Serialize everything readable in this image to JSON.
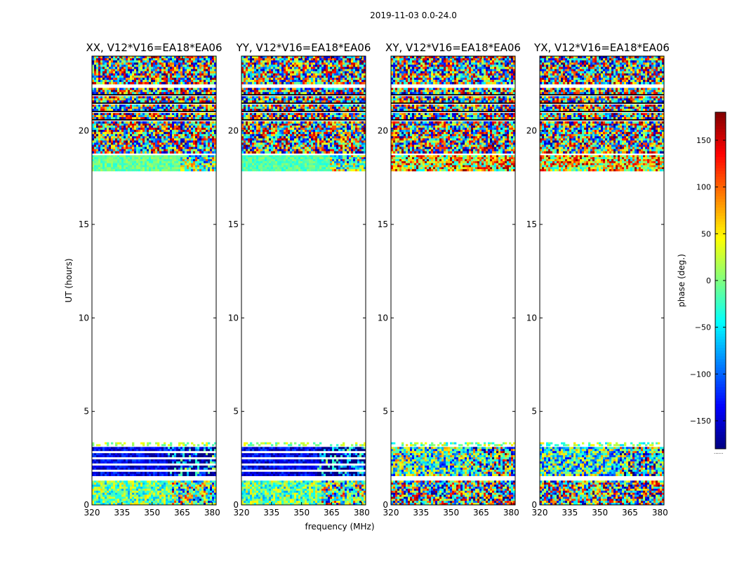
{
  "figure": {
    "suptitle": "2019-11-03 0.0-24.0",
    "xlabel": "frequency (MHz)",
    "ylabel": "UT (hours)"
  },
  "colorbar": {
    "label": "phase (deg.)",
    "ticks": [
      150,
      100,
      50,
      0,
      -50,
      -100,
      -150
    ],
    "tick_labels": [
      "150",
      "100",
      "50",
      "0",
      "−50",
      "−100",
      "−150"
    ],
    "range": [
      -180,
      180
    ],
    "colormap": "jet",
    "footer": "......"
  },
  "chart_data": [
    {
      "type": "heatmap",
      "title": "XX, V12*V16=EA18*EA06",
      "polarization": "XX",
      "xlabel": "frequency (MHz)",
      "ylabel": "UT (hours)",
      "xlim": [
        320,
        382
      ],
      "ylim": [
        0,
        24
      ],
      "xticks": [
        320,
        335,
        350,
        365,
        380
      ],
      "yticks": [
        0,
        5,
        10,
        15,
        20
      ],
      "value_label": "phase (deg.)",
      "value_range": [
        -180,
        180
      ],
      "bands": [
        {
          "t0": 0.0,
          "t1": 1.3,
          "pattern": "mixed",
          "mean": -10,
          "spread": 70
        },
        {
          "t0": 1.55,
          "t1": 3.1,
          "pattern": "stripes",
          "mean": -140,
          "spread": 35
        },
        {
          "t0": 3.15,
          "t1": 3.35,
          "pattern": "faint",
          "mean": 10,
          "spread": 40
        },
        {
          "t0": 17.85,
          "t1": 18.7,
          "pattern": "smooth",
          "mean": -10,
          "spread": 25
        },
        {
          "t0": 18.8,
          "t1": 20.4,
          "pattern": "noise",
          "mean": 0,
          "spread": 180
        },
        {
          "t0": 20.4,
          "t1": 22.3,
          "pattern": "striped-noise",
          "mean": 0,
          "spread": 180
        },
        {
          "t0": 22.5,
          "t1": 24.0,
          "pattern": "noise",
          "mean": 0,
          "spread": 180
        }
      ]
    },
    {
      "type": "heatmap",
      "title": "YY, V12*V16=EA18*EA06",
      "polarization": "YY",
      "xlabel": "frequency (MHz)",
      "ylabel": "UT (hours)",
      "xlim": [
        320,
        382
      ],
      "ylim": [
        0,
        24
      ],
      "xticks": [
        320,
        335,
        350,
        365,
        380
      ],
      "yticks": [
        0,
        5,
        10,
        15,
        20
      ],
      "value_label": "phase (deg.)",
      "value_range": [
        -180,
        180
      ],
      "bands": [
        {
          "t0": 0.0,
          "t1": 1.3,
          "pattern": "mixed",
          "mean": -10,
          "spread": 70
        },
        {
          "t0": 1.55,
          "t1": 3.1,
          "pattern": "stripes",
          "mean": -140,
          "spread": 35
        },
        {
          "t0": 3.15,
          "t1": 3.35,
          "pattern": "faint",
          "mean": 10,
          "spread": 40
        },
        {
          "t0": 17.85,
          "t1": 18.7,
          "pattern": "smooth",
          "mean": -15,
          "spread": 25
        },
        {
          "t0": 18.8,
          "t1": 20.4,
          "pattern": "noise",
          "mean": 0,
          "spread": 180
        },
        {
          "t0": 20.4,
          "t1": 22.3,
          "pattern": "striped-noise",
          "mean": 0,
          "spread": 180
        },
        {
          "t0": 22.5,
          "t1": 24.0,
          "pattern": "noise",
          "mean": 0,
          "spread": 180
        }
      ]
    },
    {
      "type": "heatmap",
      "title": "XY, V12*V16=EA18*EA06",
      "polarization": "XY",
      "xlabel": "frequency (MHz)",
      "ylabel": "UT (hours)",
      "xlim": [
        320,
        382
      ],
      "ylim": [
        0,
        24
      ],
      "xticks": [
        320,
        335,
        350,
        365,
        380
      ],
      "yticks": [
        0,
        5,
        10,
        15,
        20
      ],
      "value_label": "phase (deg.)",
      "value_range": [
        -180,
        180
      ],
      "bands": [
        {
          "t0": 0.0,
          "t1": 1.3,
          "pattern": "noise",
          "mean": 0,
          "spread": 180
        },
        {
          "t0": 1.55,
          "t1": 3.1,
          "pattern": "mixed",
          "mean": -20,
          "spread": 120
        },
        {
          "t0": 3.15,
          "t1": 3.35,
          "pattern": "faint",
          "mean": 0,
          "spread": 60
        },
        {
          "t0": 17.85,
          "t1": 18.7,
          "pattern": "noise",
          "mean": 60,
          "spread": 120
        },
        {
          "t0": 18.8,
          "t1": 20.4,
          "pattern": "noise",
          "mean": 0,
          "spread": 180
        },
        {
          "t0": 20.4,
          "t1": 22.3,
          "pattern": "striped-noise",
          "mean": 0,
          "spread": 180
        },
        {
          "t0": 22.5,
          "t1": 24.0,
          "pattern": "noise",
          "mean": 0,
          "spread": 180
        }
      ]
    },
    {
      "type": "heatmap",
      "title": "YX, V12*V16=EA18*EA06",
      "polarization": "YX",
      "xlabel": "frequency (MHz)",
      "ylabel": "UT (hours)",
      "xlim": [
        320,
        382
      ],
      "ylim": [
        0,
        24
      ],
      "xticks": [
        320,
        335,
        350,
        365,
        380
      ],
      "yticks": [
        0,
        5,
        10,
        15,
        20
      ],
      "value_label": "phase (deg.)",
      "value_range": [
        -180,
        180
      ],
      "bands": [
        {
          "t0": 0.0,
          "t1": 1.3,
          "pattern": "noise",
          "mean": 0,
          "spread": 180
        },
        {
          "t0": 1.55,
          "t1": 3.1,
          "pattern": "mixed",
          "mean": -30,
          "spread": 110
        },
        {
          "t0": 3.15,
          "t1": 3.35,
          "pattern": "faint",
          "mean": 0,
          "spread": 60
        },
        {
          "t0": 17.85,
          "t1": 18.7,
          "pattern": "noise",
          "mean": 60,
          "spread": 120
        },
        {
          "t0": 18.8,
          "t1": 20.4,
          "pattern": "noise",
          "mean": 0,
          "spread": 180
        },
        {
          "t0": 20.4,
          "t1": 22.3,
          "pattern": "striped-noise",
          "mean": 0,
          "spread": 180
        },
        {
          "t0": 22.5,
          "t1": 24.0,
          "pattern": "noise",
          "mean": 0,
          "spread": 180
        }
      ]
    }
  ]
}
